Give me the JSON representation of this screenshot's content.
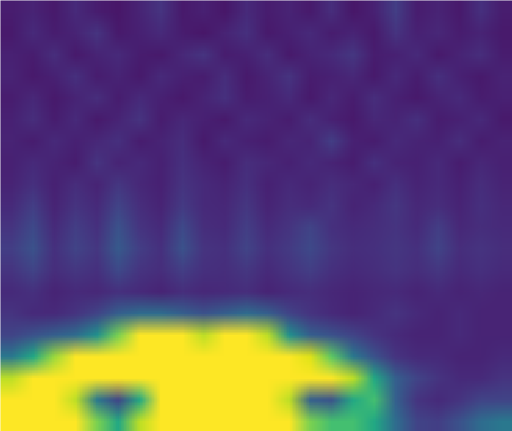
{
  "chart_data": {
    "type": "heatmap",
    "color": "viridis",
    "tick_labels": false,
    "zlim": [
      0,
      1
    ],
    "cells": [
      [
        0.08,
        0.1,
        0.07,
        0.12,
        0.08,
        0.06,
        0.1,
        0.15,
        0.07,
        0.09,
        0.06,
        0.12,
        0.08,
        0.1,
        0.07,
        0.13,
        0.06,
        0.09,
        0.18,
        0.08,
        0.1,
        0.07,
        0.14,
        0.08
      ],
      [
        0.07,
        0.12,
        0.08,
        0.1,
        0.15,
        0.07,
        0.09,
        0.12,
        0.08,
        0.06,
        0.1,
        0.14,
        0.07,
        0.09,
        0.12,
        0.08,
        0.1,
        0.07,
        0.15,
        0.09,
        0.11,
        0.08,
        0.1,
        0.07
      ],
      [
        0.09,
        0.08,
        0.13,
        0.07,
        0.1,
        0.12,
        0.08,
        0.07,
        0.11,
        0.15,
        0.08,
        0.09,
        0.13,
        0.07,
        0.1,
        0.12,
        0.16,
        0.08,
        0.09,
        0.12,
        0.07,
        0.1,
        0.13,
        0.08
      ],
      [
        0.1,
        0.07,
        0.09,
        0.14,
        0.08,
        0.1,
        0.07,
        0.12,
        0.09,
        0.08,
        0.13,
        0.07,
        0.1,
        0.15,
        0.08,
        0.09,
        0.11,
        0.07,
        0.12,
        0.08,
        0.14,
        0.09,
        0.07,
        0.1
      ],
      [
        0.08,
        0.11,
        0.07,
        0.1,
        0.13,
        0.08,
        0.12,
        0.09,
        0.07,
        0.1,
        0.14,
        0.08,
        0.09,
        0.12,
        0.07,
        0.11,
        0.08,
        0.13,
        0.09,
        0.07,
        0.1,
        0.12,
        0.08,
        0.09
      ],
      [
        0.09,
        0.13,
        0.08,
        0.12,
        0.07,
        0.1,
        0.15,
        0.08,
        0.11,
        0.09,
        0.07,
        0.12,
        0.1,
        0.08,
        0.13,
        0.09,
        0.07,
        0.11,
        0.1,
        0.14,
        0.08,
        0.09,
        0.12,
        0.07
      ],
      [
        0.1,
        0.08,
        0.12,
        0.09,
        0.11,
        0.14,
        0.08,
        0.1,
        0.13,
        0.07,
        0.12,
        0.09,
        0.08,
        0.11,
        0.1,
        0.18,
        0.09,
        0.08,
        0.12,
        0.1,
        0.09,
        0.13,
        0.08,
        0.1
      ],
      [
        0.09,
        0.12,
        0.1,
        0.08,
        0.15,
        0.1,
        0.12,
        0.09,
        0.14,
        0.1,
        0.08,
        0.13,
        0.11,
        0.09,
        0.12,
        0.1,
        0.08,
        0.14,
        0.1,
        0.09,
        0.12,
        0.08,
        0.11,
        0.09
      ],
      [
        0.1,
        0.14,
        0.09,
        0.13,
        0.1,
        0.16,
        0.11,
        0.09,
        0.15,
        0.12,
        0.1,
        0.14,
        0.09,
        0.12,
        0.1,
        0.13,
        0.11,
        0.09,
        0.14,
        0.1,
        0.12,
        0.09,
        0.13,
        0.1
      ],
      [
        0.12,
        0.18,
        0.1,
        0.15,
        0.12,
        0.2,
        0.13,
        0.1,
        0.17,
        0.12,
        0.11,
        0.16,
        0.1,
        0.13,
        0.12,
        0.15,
        0.1,
        0.12,
        0.16,
        0.11,
        0.13,
        0.1,
        0.14,
        0.11
      ],
      [
        0.15,
        0.22,
        0.12,
        0.18,
        0.14,
        0.25,
        0.15,
        0.12,
        0.22,
        0.13,
        0.12,
        0.18,
        0.12,
        0.15,
        0.2,
        0.14,
        0.12,
        0.13,
        0.15,
        0.12,
        0.18,
        0.11,
        0.13,
        0.12
      ],
      [
        0.18,
        0.25,
        0.14,
        0.2,
        0.16,
        0.28,
        0.18,
        0.14,
        0.25,
        0.15,
        0.14,
        0.2,
        0.14,
        0.17,
        0.22,
        0.16,
        0.13,
        0.14,
        0.16,
        0.14,
        0.2,
        0.13,
        0.15,
        0.13
      ],
      [
        0.15,
        0.2,
        0.13,
        0.16,
        0.14,
        0.22,
        0.15,
        0.13,
        0.18,
        0.14,
        0.13,
        0.16,
        0.12,
        0.15,
        0.18,
        0.14,
        0.12,
        0.13,
        0.15,
        0.13,
        0.16,
        0.12,
        0.14,
        0.12
      ],
      [
        0.12,
        0.14,
        0.1,
        0.12,
        0.11,
        0.14,
        0.12,
        0.1,
        0.13,
        0.11,
        0.12,
        0.13,
        0.1,
        0.12,
        0.13,
        0.11,
        0.1,
        0.11,
        0.12,
        0.1,
        0.12,
        0.1,
        0.11,
        0.1
      ],
      [
        0.15,
        0.12,
        0.12,
        0.15,
        0.2,
        0.3,
        0.35,
        0.35,
        0.3,
        0.25,
        0.3,
        0.35,
        0.3,
        0.2,
        0.15,
        0.12,
        0.1,
        0.12,
        0.15,
        0.12,
        0.1,
        0.12,
        0.1,
        0.1
      ],
      [
        0.2,
        0.25,
        0.3,
        0.35,
        0.5,
        0.8,
        1,
        1,
        1,
        0.9,
        1,
        1,
        0.9,
        0.5,
        0.3,
        0.25,
        0.2,
        0.15,
        0.12,
        0.1,
        0.1,
        0.12,
        0.1,
        0.1
      ],
      [
        0.4,
        0.6,
        0.85,
        1,
        1,
        1,
        1,
        1,
        1,
        1,
        1,
        1,
        1,
        1,
        0.95,
        0.75,
        0.4,
        0.25,
        0.15,
        0.12,
        0.12,
        0.1,
        0.1,
        0.12
      ],
      [
        0.9,
        1,
        1,
        1,
        1,
        1,
        1,
        1,
        1,
        1,
        1,
        1,
        1,
        1,
        1,
        1,
        0.9,
        0.6,
        0.3,
        0.2,
        0.15,
        0.12,
        0.12,
        0.15
      ],
      [
        1,
        1,
        1,
        0.9,
        0.4,
        0.2,
        0.6,
        1,
        1,
        1,
        1,
        1,
        1,
        0.9,
        0.3,
        0.25,
        0.6,
        0.7,
        0.3,
        0.15,
        0.12,
        0.15,
        0.2,
        0.2
      ],
      [
        1,
        1,
        1,
        1,
        0.8,
        0.6,
        0.9,
        1,
        1,
        1,
        1,
        1,
        1,
        1,
        0.8,
        0.7,
        0.7,
        0.6,
        0.35,
        0.2,
        0.18,
        0.25,
        0.35,
        0.4
      ]
    ]
  }
}
